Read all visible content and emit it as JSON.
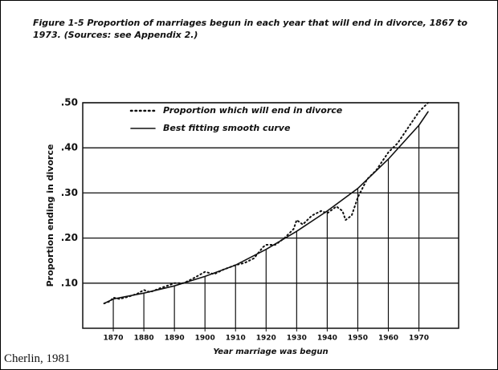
{
  "chart_data": {
    "type": "line",
    "title": "Figure 1-5 Proportion of marriages begun in each year that will end in divorce, 1867 to 1973. (Sources: see Appendix 2.)",
    "x_label": "Year marriage was begun",
    "y_label": "Proportion ending in divorce",
    "caption": "Cherlin, 1981",
    "xlim": [
      1860,
      1983
    ],
    "ylim": [
      0,
      0.5
    ],
    "xticks": [
      1870,
      1880,
      1890,
      1900,
      1910,
      1920,
      1930,
      1940,
      1950,
      1960,
      1970
    ],
    "yticks": [
      {
        "value": 0.1,
        "label": ".10"
      },
      {
        "value": 0.2,
        "label": ".20"
      },
      {
        "value": 0.3,
        "label": ".30"
      },
      {
        "value": 0.4,
        "label": ".40"
      },
      {
        "value": 0.5,
        "label": ".50"
      }
    ],
    "grid": true,
    "legend": "upper left",
    "series": [
      {
        "name": "Proportion which will end in divorce",
        "color": "#111111",
        "line_style": "dotted",
        "x": [
          1867,
          1869,
          1870,
          1872,
          1875,
          1878,
          1880,
          1882,
          1885,
          1888,
          1890,
          1893,
          1896,
          1900,
          1903,
          1906,
          1910,
          1913,
          1916,
          1919,
          1920,
          1923,
          1926,
          1929,
          1930,
          1932,
          1935,
          1938,
          1940,
          1943,
          1945,
          1946,
          1948,
          1950,
          1953,
          1956,
          1960,
          1963,
          1966,
          1970,
          1973
        ],
        "values": [
          0.055,
          0.06,
          0.068,
          0.065,
          0.07,
          0.077,
          0.085,
          0.08,
          0.088,
          0.095,
          0.1,
          0.1,
          0.11,
          0.125,
          0.12,
          0.13,
          0.14,
          0.145,
          0.155,
          0.18,
          0.185,
          0.185,
          0.2,
          0.22,
          0.24,
          0.23,
          0.25,
          0.26,
          0.255,
          0.27,
          0.26,
          0.24,
          0.25,
          0.29,
          0.33,
          0.35,
          0.39,
          0.41,
          0.44,
          0.48,
          0.5
        ]
      },
      {
        "name": "Best fitting smooth curve",
        "color": "#111111",
        "line_style": "solid",
        "x": [
          1867,
          1870,
          1880,
          1890,
          1900,
          1910,
          1920,
          1930,
          1940,
          1950,
          1960,
          1970,
          1973
        ],
        "values": [
          0.055,
          0.065,
          0.078,
          0.094,
          0.115,
          0.14,
          0.175,
          0.215,
          0.26,
          0.31,
          0.375,
          0.45,
          0.48
        ]
      }
    ]
  }
}
